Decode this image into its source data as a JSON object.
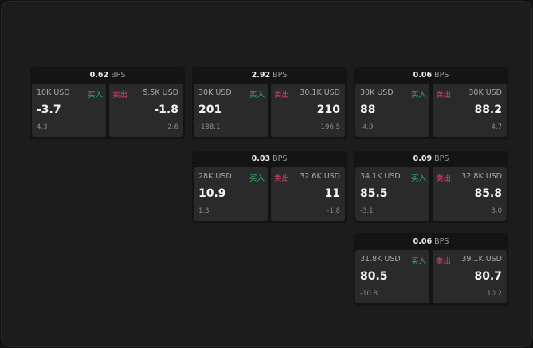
{
  "labels": {
    "buy": "买入",
    "sell": "卖出",
    "unit": "BPS"
  },
  "colors": {
    "buy": "#2fb36a",
    "sell": "#e0446a"
  },
  "panels": [
    {
      "spread": "0.62",
      "buy": {
        "size": "10K USD",
        "price": "-3.7",
        "change": "4.3"
      },
      "sell": {
        "size": "5.5K USD",
        "price": "-1.8",
        "change": "-2.6"
      }
    },
    {
      "spread": "2.92",
      "buy": {
        "size": "30K USD",
        "price": "201",
        "change": "-188.1"
      },
      "sell": {
        "size": "30.1K USD",
        "price": "210",
        "change": "196.5"
      }
    },
    {
      "spread": "0.06",
      "buy": {
        "size": "30K USD",
        "price": "88",
        "change": "-4.9"
      },
      "sell": {
        "size": "30K USD",
        "price": "88.2",
        "change": "4.7"
      }
    },
    {
      "spread": "0.03",
      "buy": {
        "size": "28K USD",
        "price": "10.9",
        "change": "1.3"
      },
      "sell": {
        "size": "32.6K USD",
        "price": "11",
        "change": "-1.8"
      }
    },
    {
      "spread": "0.09",
      "buy": {
        "size": "34.1K USD",
        "price": "85.5",
        "change": "-3.1"
      },
      "sell": {
        "size": "32.8K USD",
        "price": "85.8",
        "change": "3.0"
      }
    },
    {
      "spread": "0.06",
      "buy": {
        "size": "31.8K USD",
        "price": "80.5",
        "change": "-10.8"
      },
      "sell": {
        "size": "39.1K USD",
        "price": "80.7",
        "change": "10.2"
      }
    }
  ]
}
